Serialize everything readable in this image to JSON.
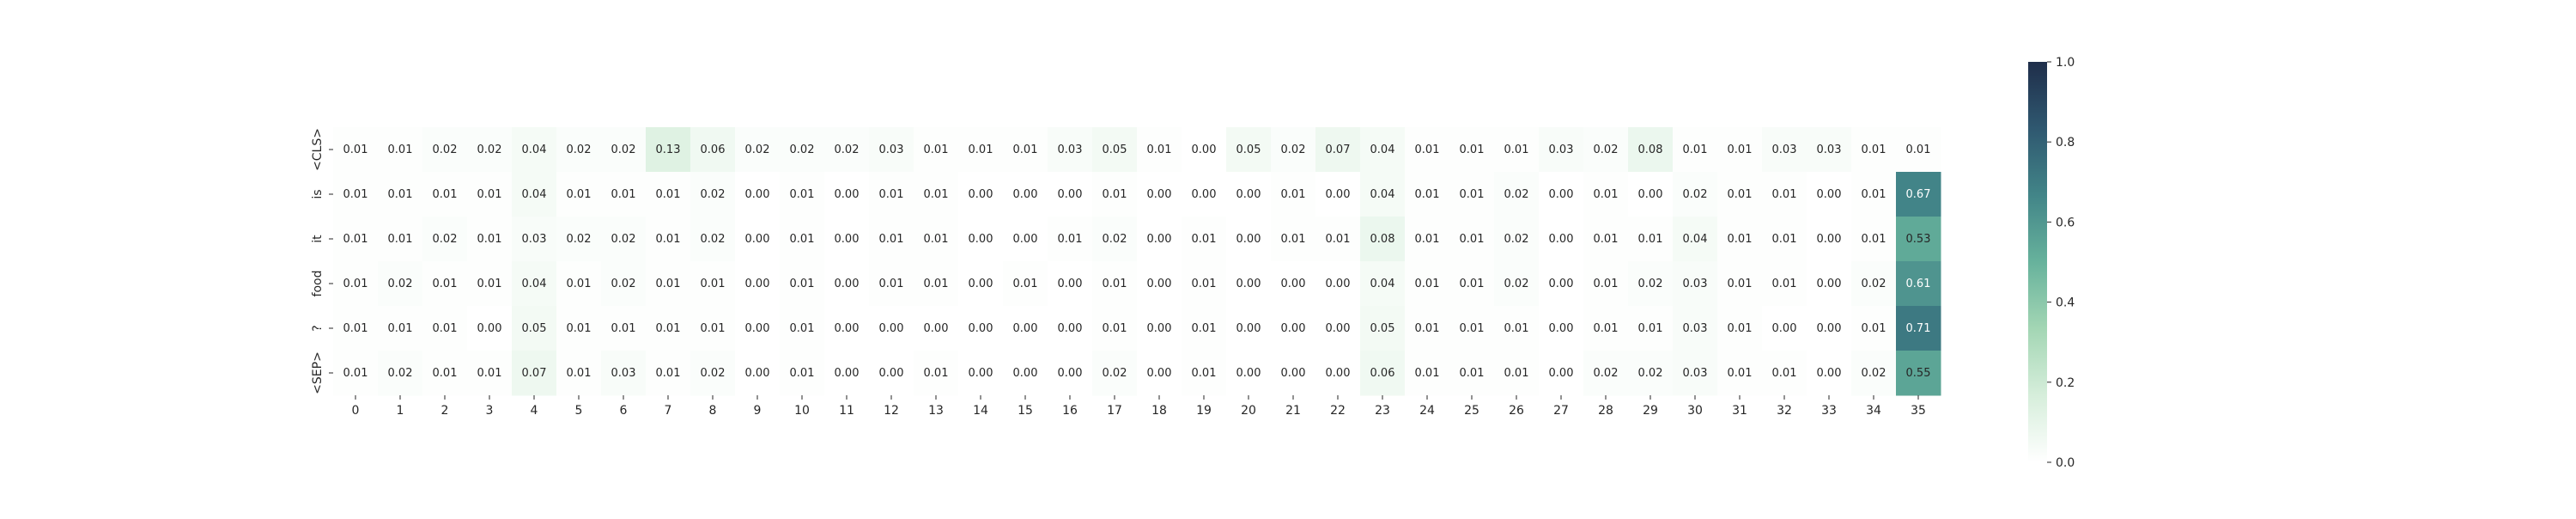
{
  "chart_data": {
    "type": "heatmap",
    "title": "",
    "xlabel": "",
    "ylabel": "",
    "x_tick_labels": [
      "0",
      "1",
      "2",
      "3",
      "4",
      "5",
      "6",
      "7",
      "8",
      "9",
      "10",
      "11",
      "12",
      "13",
      "14",
      "15",
      "16",
      "17",
      "18",
      "19",
      "20",
      "21",
      "22",
      "23",
      "24",
      "25",
      "26",
      "27",
      "28",
      "29",
      "30",
      "31",
      "32",
      "33",
      "34",
      "35"
    ],
    "y_tick_labels": [
      "<CLS>",
      "is",
      "it",
      "food",
      "?",
      "<SEP>"
    ],
    "values": [
      [
        0.01,
        0.01,
        0.02,
        0.02,
        0.04,
        0.02,
        0.02,
        0.13,
        0.06,
        0.02,
        0.02,
        0.02,
        0.03,
        0.01,
        0.01,
        0.01,
        0.03,
        0.05,
        0.01,
        0.0,
        0.05,
        0.02,
        0.07,
        0.04,
        0.01,
        0.01,
        0.01,
        0.03,
        0.02,
        0.08,
        0.01,
        0.01,
        0.03,
        0.03,
        0.01,
        0.01
      ],
      [
        0.01,
        0.01,
        0.01,
        0.01,
        0.04,
        0.01,
        0.01,
        0.01,
        0.02,
        0.0,
        0.01,
        0.0,
        0.01,
        0.01,
        0.0,
        0.0,
        0.0,
        0.01,
        0.0,
        0.0,
        0.0,
        0.01,
        0.0,
        0.04,
        0.01,
        0.01,
        0.02,
        0.0,
        0.01,
        0.0,
        0.02,
        0.01,
        0.01,
        0.0,
        0.01,
        0.67
      ],
      [
        0.01,
        0.01,
        0.02,
        0.01,
        0.03,
        0.02,
        0.02,
        0.01,
        0.02,
        0.0,
        0.01,
        0.0,
        0.01,
        0.01,
        0.0,
        0.0,
        0.01,
        0.02,
        0.0,
        0.01,
        0.0,
        0.01,
        0.01,
        0.08,
        0.01,
        0.01,
        0.02,
        0.0,
        0.01,
        0.01,
        0.04,
        0.01,
        0.01,
        0.0,
        0.01,
        0.53
      ],
      [
        0.01,
        0.02,
        0.01,
        0.01,
        0.04,
        0.01,
        0.02,
        0.01,
        0.01,
        0.0,
        0.01,
        0.0,
        0.01,
        0.01,
        0.0,
        0.01,
        0.0,
        0.01,
        0.0,
        0.01,
        0.0,
        0.0,
        0.0,
        0.04,
        0.01,
        0.01,
        0.02,
        0.0,
        0.01,
        0.02,
        0.03,
        0.01,
        0.01,
        0.0,
        0.02,
        0.61
      ],
      [
        0.01,
        0.01,
        0.01,
        0.0,
        0.05,
        0.01,
        0.01,
        0.01,
        0.01,
        0.0,
        0.01,
        0.0,
        0.0,
        0.0,
        0.0,
        0.0,
        0.0,
        0.01,
        0.0,
        0.01,
        0.0,
        0.0,
        0.0,
        0.05,
        0.01,
        0.01,
        0.01,
        0.0,
        0.01,
        0.01,
        0.03,
        0.01,
        0.0,
        0.0,
        0.01,
        0.71
      ],
      [
        0.01,
        0.02,
        0.01,
        0.01,
        0.07,
        0.01,
        0.03,
        0.01,
        0.02,
        0.0,
        0.01,
        0.0,
        0.0,
        0.01,
        0.0,
        0.0,
        0.0,
        0.02,
        0.0,
        0.01,
        0.0,
        0.0,
        0.0,
        0.06,
        0.01,
        0.01,
        0.01,
        0.0,
        0.02,
        0.02,
        0.03,
        0.01,
        0.01,
        0.0,
        0.02,
        0.55
      ]
    ],
    "colorbar": {
      "range": [
        0.0,
        1.0
      ],
      "ticks": [
        0.0,
        0.2,
        0.4,
        0.6,
        0.8,
        1.0
      ],
      "tick_labels": [
        "0.0",
        "0.2",
        "0.4",
        "0.6",
        "0.8",
        "1.0"
      ],
      "colormap": "white-to-green-to-navy (cubehelix, light)",
      "color_stops": [
        "#ffffff",
        "#d6eedb",
        "#a3d6b4",
        "#67b29c",
        "#428588",
        "#2f5870",
        "#1f2e4a"
      ]
    },
    "grid": false,
    "annotated_cells": true
  }
}
